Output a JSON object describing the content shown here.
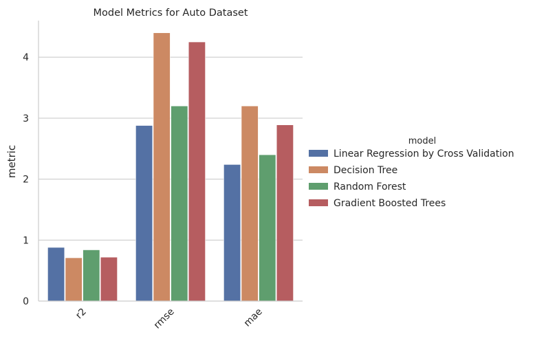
{
  "chart_data": {
    "type": "bar",
    "title": "Model Metrics for Auto Dataset",
    "xlabel": "",
    "ylabel": "metric",
    "ylim": [
      0,
      4.6
    ],
    "yticks": [
      0,
      1,
      2,
      3,
      4
    ],
    "grid": "horizontal",
    "legend_title": "model",
    "legend_position": "right",
    "categories": [
      "r2",
      "rmse",
      "mae"
    ],
    "series": [
      {
        "name": "Linear Regression by Cross Validation",
        "color": "#5471a4",
        "values": [
          0.88,
          2.88,
          2.24
        ]
      },
      {
        "name": "Decision Tree",
        "color": "#cc8963",
        "values": [
          0.71,
          4.4,
          3.2
        ]
      },
      {
        "name": "Random Forest",
        "color": "#5f9e6e",
        "values": [
          0.84,
          3.2,
          2.4
        ]
      },
      {
        "name": "Gradient Boosted Trees",
        "color": "#b65d60",
        "values": [
          0.72,
          4.25,
          2.89
        ]
      }
    ]
  }
}
